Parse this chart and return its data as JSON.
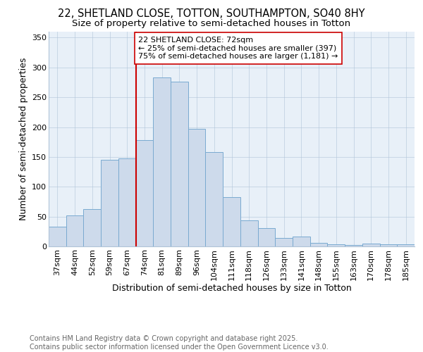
{
  "title_line1": "22, SHETLAND CLOSE, TOTTON, SOUTHAMPTON, SO40 8HY",
  "title_line2": "Size of property relative to semi-detached houses in Totton",
  "xlabel": "Distribution of semi-detached houses by size in Totton",
  "ylabel": "Number of semi-detached properties",
  "categories": [
    "37sqm",
    "44sqm",
    "52sqm",
    "59sqm",
    "67sqm",
    "74sqm",
    "81sqm",
    "89sqm",
    "96sqm",
    "104sqm",
    "111sqm",
    "118sqm",
    "126sqm",
    "133sqm",
    "141sqm",
    "148sqm",
    "155sqm",
    "163sqm",
    "170sqm",
    "178sqm",
    "185sqm"
  ],
  "values": [
    33,
    52,
    62,
    145,
    147,
    178,
    283,
    276,
    197,
    158,
    83,
    44,
    31,
    14,
    17,
    6,
    4,
    2,
    5,
    4,
    3
  ],
  "bar_color": "#cddaeb",
  "bar_edge_color": "#7aaad0",
  "vline_x_idx": 5,
  "vline_color": "#cc0000",
  "annotation_text": "22 SHETLAND CLOSE: 72sqm\n← 25% of semi-detached houses are smaller (397)\n75% of semi-detached houses are larger (1,181) →",
  "annotation_box_color": "#ffffff",
  "annotation_box_edge": "#cc0000",
  "ylim": [
    0,
    360
  ],
  "yticks": [
    0,
    50,
    100,
    150,
    200,
    250,
    300,
    350
  ],
  "background_color": "#e8f0f8",
  "footer_text": "Contains HM Land Registry data © Crown copyright and database right 2025.\nContains public sector information licensed under the Open Government Licence v3.0.",
  "title_fontsize": 10.5,
  "subtitle_fontsize": 9.5,
  "axis_label_fontsize": 9,
  "tick_fontsize": 8,
  "annotation_fontsize": 8,
  "footer_fontsize": 7
}
